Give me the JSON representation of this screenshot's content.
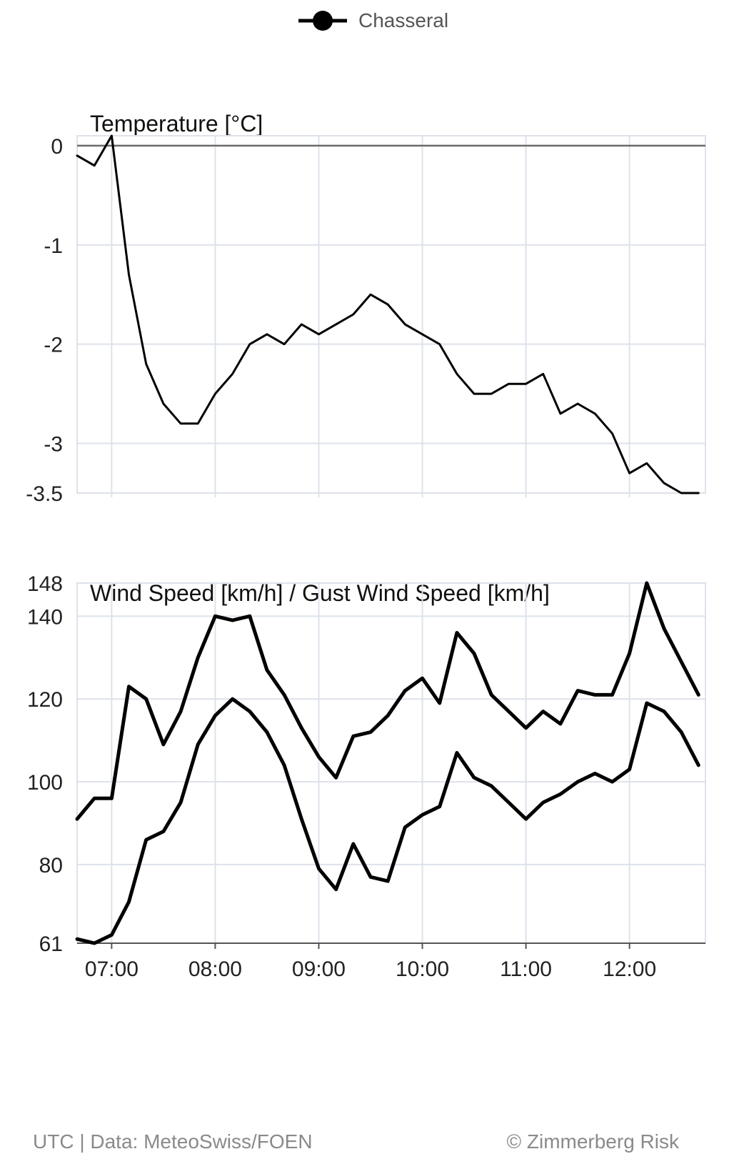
{
  "legend": {
    "label": "Chasseral"
  },
  "footer": {
    "source": "UTC | Data: MeteoSwiss/FOEN",
    "copyright": "© Zimmerberg Risk"
  },
  "colors": {
    "line": "#000000",
    "grid": "#dde2ea",
    "zero_line": "#6b6b6b",
    "axis_text": "#222222",
    "footer_text": "#8a8a8a"
  },
  "chart_data": [
    {
      "type": "line",
      "title": "Temperature [°C]",
      "xlabel": "",
      "ylabel": "",
      "ylim": [
        -3.5,
        0.1
      ],
      "y_ticks": [
        0,
        -1,
        -2,
        -3,
        -3.5
      ],
      "x_ticks": [
        "07:00",
        "08:00",
        "09:00",
        "10:00",
        "11:00",
        "12:00"
      ],
      "grid": true,
      "x": [
        "06:40",
        "06:50",
        "07:00",
        "07:10",
        "07:20",
        "07:30",
        "07:40",
        "07:50",
        "08:00",
        "08:10",
        "08:20",
        "08:30",
        "08:40",
        "08:50",
        "09:00",
        "09:10",
        "09:20",
        "09:30",
        "09:40",
        "09:50",
        "10:00",
        "10:10",
        "10:20",
        "10:30",
        "10:40",
        "10:50",
        "11:00",
        "11:10",
        "11:20",
        "11:30",
        "11:40",
        "11:50",
        "12:00",
        "12:10",
        "12:20",
        "12:30",
        "12:40"
      ],
      "series": [
        {
          "name": "Chasseral",
          "values": [
            -0.1,
            -0.2,
            0.1,
            -1.3,
            -2.2,
            -2.6,
            -2.8,
            -2.8,
            -2.5,
            -2.3,
            -2.0,
            -1.9,
            -2.0,
            -1.8,
            -1.9,
            -1.8,
            -1.7,
            -1.5,
            -1.6,
            -1.8,
            -1.9,
            -2.0,
            -2.3,
            -2.5,
            -2.5,
            -2.4,
            -2.4,
            -2.3,
            -2.7,
            -2.6,
            -2.7,
            -2.9,
            -3.3,
            -3.2,
            -3.4,
            -3.5,
            -3.5
          ]
        }
      ]
    },
    {
      "type": "line",
      "title": "Wind Speed [km/h] / Gust Wind Speed [km/h]",
      "xlabel": "",
      "ylabel": "",
      "ylim": [
        61,
        148
      ],
      "y_ticks": [
        148,
        140,
        120,
        100,
        80,
        61
      ],
      "x_ticks": [
        "07:00",
        "08:00",
        "09:00",
        "10:00",
        "11:00",
        "12:00"
      ],
      "grid": true,
      "x": [
        "06:40",
        "06:50",
        "07:00",
        "07:10",
        "07:20",
        "07:30",
        "07:40",
        "07:50",
        "08:00",
        "08:10",
        "08:20",
        "08:30",
        "08:40",
        "08:50",
        "09:00",
        "09:10",
        "09:20",
        "09:30",
        "09:40",
        "09:50",
        "10:00",
        "10:10",
        "10:20",
        "10:30",
        "10:40",
        "10:50",
        "11:00",
        "11:10",
        "11:20",
        "11:30",
        "11:40",
        "11:50",
        "12:00",
        "12:10",
        "12:20",
        "12:30",
        "12:40"
      ],
      "series": [
        {
          "values": [
            91,
            96,
            96,
            123,
            120,
            109,
            117,
            130,
            140,
            139,
            140,
            127,
            121,
            113,
            106,
            101,
            111,
            112,
            116,
            122,
            125,
            119,
            136,
            131,
            121,
            117,
            113,
            117,
            114,
            122,
            121,
            121,
            131,
            148,
            137,
            129,
            121
          ]
        },
        {
          "values": [
            62,
            61,
            63,
            71,
            86,
            88,
            95,
            109,
            116,
            120,
            117,
            112,
            104,
            91,
            79,
            74,
            85,
            77,
            76,
            89,
            92,
            94,
            107,
            101,
            99,
            95,
            91,
            95,
            97,
            100,
            102,
            100,
            103,
            119,
            117,
            112,
            104
          ]
        }
      ]
    }
  ]
}
